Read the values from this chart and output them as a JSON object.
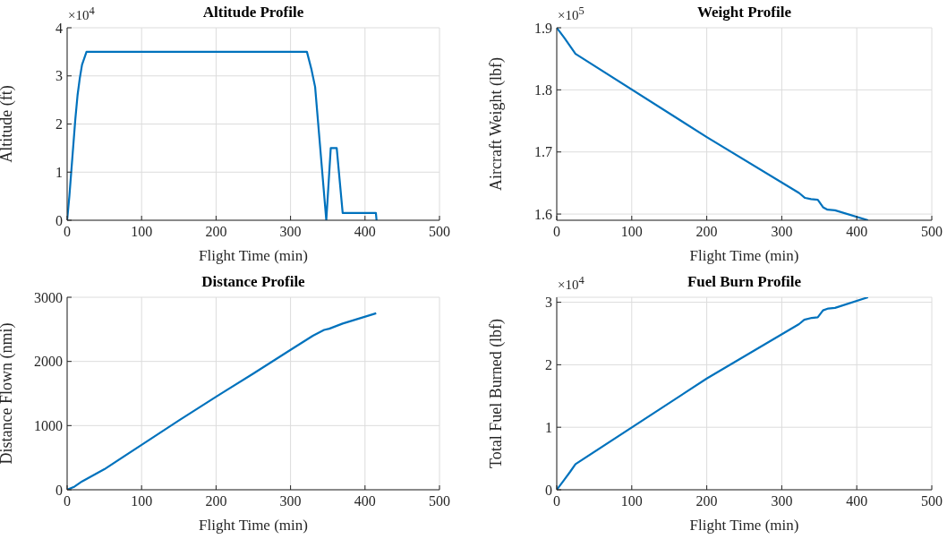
{
  "chart_data": [
    {
      "type": "line",
      "title": "Altitude Profile",
      "xlabel": "Flight Time (min)",
      "ylabel": "Altitude (ft)",
      "annotations": [
        "×10$^{4}$"
      ],
      "xlim": [
        0,
        500
      ],
      "xticks": [
        0,
        100,
        200,
        300,
        400,
        500
      ],
      "ylim": [
        0,
        4
      ],
      "yticks": [
        0,
        1,
        2,
        3,
        4
      ],
      "grid": true,
      "line_style": "solid",
      "series": [
        {
          "color": "#0072bd",
          "x": [
            0,
            3,
            7,
            11,
            14,
            17,
            20,
            26,
            322,
            328,
            333,
            348,
            354,
            362,
            370,
            414.6,
            415.5
          ],
          "values": [
            0,
            0.5,
            1.3,
            2.1,
            2.6,
            2.95,
            3.23,
            3.5,
            3.5,
            3.14,
            2.77,
            0,
            1.5,
            1.5,
            0.15,
            0.15,
            0
          ]
        }
      ]
    },
    {
      "type": "line",
      "title": "Weight Profile",
      "xlabel": "Flight Time (min)",
      "ylabel": "Aircraft Weight (lbf)",
      "annotations": [
        "×10$^{5}$"
      ],
      "xlim": [
        0,
        500
      ],
      "xticks": [
        0,
        100,
        200,
        300,
        400,
        500
      ],
      "ylim": [
        1.59,
        1.9
      ],
      "yticks": [
        1.6,
        1.7,
        1.8,
        1.9
      ],
      "grid": true,
      "line_style": "solid",
      "series": [
        {
          "color": "#0072bd",
          "x": [
            0,
            10,
            25,
            200,
            323,
            331,
            339,
            348,
            355,
            361,
            371,
            415
          ],
          "values": [
            1.9,
            1.884,
            1.858,
            1.724,
            1.634,
            1.626,
            1.624,
            1.623,
            1.611,
            1.607,
            1.606,
            1.59
          ]
        }
      ]
    },
    {
      "type": "line",
      "title": "Distance Profile",
      "xlabel": "Flight Time (min)",
      "ylabel": "Distance Flown (nmi)",
      "xlim": [
        0,
        500
      ],
      "xticks": [
        0,
        100,
        200,
        300,
        400,
        500
      ],
      "ylim": [
        0,
        3000
      ],
      "yticks": [
        0,
        1000,
        2000,
        3000
      ],
      "grid": true,
      "line_style": "solid",
      "series": [
        {
          "color": "#0072bd",
          "x": [
            0,
            10,
            20,
            50,
            100,
            150,
            200,
            250,
            300,
            330,
            345,
            352,
            370,
            415
          ],
          "values": [
            0,
            50,
            130,
            320,
            700,
            1080,
            1450,
            1810,
            2180,
            2400,
            2490,
            2510,
            2590,
            2750
          ]
        }
      ]
    },
    {
      "type": "line",
      "title": "Fuel Burn Profile",
      "xlabel": "Flight Time (min)",
      "ylabel": "Total Fuel Burned (lbf)",
      "annotations": [
        "×10$^{4}$"
      ],
      "xlim": [
        0,
        500
      ],
      "xticks": [
        0,
        100,
        200,
        300,
        400,
        500
      ],
      "ylim": [
        0,
        3.08
      ],
      "yticks": [
        0,
        1,
        2,
        3
      ],
      "grid": true,
      "line_style": "solid",
      "series": [
        {
          "color": "#0072bd",
          "x": [
            0,
            10,
            18,
            25,
            200,
            323,
            330,
            340,
            348,
            355,
            362,
            371,
            415
          ],
          "values": [
            0,
            0.16,
            0.29,
            0.41,
            1.78,
            2.65,
            2.72,
            2.75,
            2.76,
            2.87,
            2.9,
            2.91,
            3.08
          ]
        }
      ]
    }
  ]
}
